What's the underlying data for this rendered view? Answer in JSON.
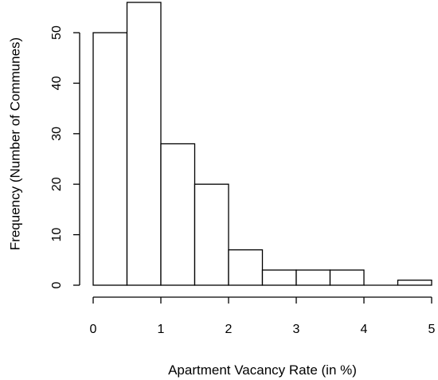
{
  "chart_data": {
    "type": "bar",
    "subtype": "histogram",
    "title": "",
    "xlabel": "Apartment Vacancy Rate (in %)",
    "ylabel": "Frequency (Number of Communes)",
    "bins": [
      {
        "x0": 0.0,
        "x1": 0.5,
        "count": 50
      },
      {
        "x0": 0.5,
        "x1": 1.0,
        "count": 56
      },
      {
        "x0": 1.0,
        "x1": 1.5,
        "count": 28
      },
      {
        "x0": 1.5,
        "x1": 2.0,
        "count": 20
      },
      {
        "x0": 2.0,
        "x1": 2.5,
        "count": 7
      },
      {
        "x0": 2.5,
        "x1": 3.0,
        "count": 3
      },
      {
        "x0": 3.0,
        "x1": 3.5,
        "count": 3
      },
      {
        "x0": 3.5,
        "x1": 4.0,
        "count": 3
      },
      {
        "x0": 4.0,
        "x1": 4.5,
        "count": 0
      },
      {
        "x0": 4.5,
        "x1": 5.0,
        "count": 1
      }
    ],
    "xlim": [
      0,
      5
    ],
    "ylim": [
      0,
      56
    ],
    "x_ticks": [
      "0",
      "1",
      "2",
      "3",
      "4",
      "5"
    ],
    "y_ticks": [
      "0",
      "10",
      "20",
      "30",
      "40",
      "50"
    ],
    "grid": false,
    "legend": "none"
  }
}
